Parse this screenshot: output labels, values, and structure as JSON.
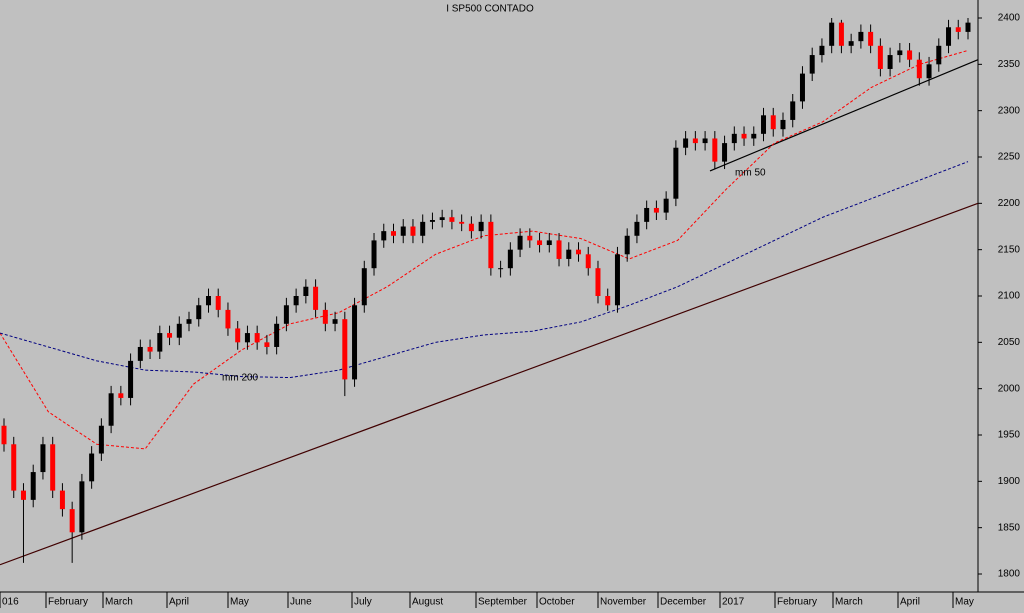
{
  "chart_data": {
    "type": "candlestick",
    "title": "I SP500 CONTADO",
    "x_labels": [
      "016",
      "February",
      "March",
      "April",
      "May",
      "June",
      "July",
      "August",
      "September",
      "October",
      "November",
      "December",
      "2017",
      "February",
      "March",
      "April",
      "May"
    ],
    "ylim": [
      1800,
      2400
    ],
    "yticks": [
      1800,
      1850,
      1900,
      1950,
      2000,
      2050,
      2100,
      2150,
      2200,
      2250,
      2300,
      2350,
      2400
    ],
    "up_color": "#000000",
    "down_color": "#ff0000",
    "open": [
      1960,
      1940,
      1890,
      1880,
      1910,
      1940,
      1890,
      1870,
      1845,
      1900,
      1930,
      1960,
      1995,
      1990,
      2030,
      2045,
      2040,
      2060,
      2055,
      2070,
      2075,
      2090,
      2100,
      2085,
      2065,
      2050,
      2060,
      2050,
      2045,
      2070,
      2090,
      2100,
      2110,
      2085,
      2070,
      2075,
      2010,
      2090,
      2130,
      2160,
      2170,
      2165,
      2175,
      2165,
      2180,
      2182,
      2185,
      2180,
      2178,
      2170,
      2180,
      2130,
      2130,
      2150,
      2165,
      2160,
      2155,
      2160,
      2140,
      2150,
      2145,
      2130,
      2100,
      2090,
      2145,
      2165,
      2180,
      2195,
      2190,
      2205,
      2260,
      2270,
      2265,
      2270,
      2245,
      2265,
      2275,
      2270,
      2275,
      2295,
      2280,
      2290,
      2310,
      2340,
      2360,
      2370,
      2395,
      2370,
      2375,
      2385,
      2370,
      2345,
      2360,
      2365,
      2355,
      2335,
      2350,
      2370,
      2390,
      2385
    ],
    "high": [
      1968,
      1948,
      1898,
      1918,
      1948,
      1948,
      1898,
      1878,
      1908,
      1938,
      1968,
      2003,
      2003,
      2038,
      2053,
      2053,
      2068,
      2068,
      2078,
      2083,
      2098,
      2108,
      2108,
      2093,
      2073,
      2068,
      2068,
      2058,
      2078,
      2098,
      2108,
      2118,
      2118,
      2093,
      2083,
      2083,
      2098,
      2138,
      2168,
      2178,
      2178,
      2183,
      2183,
      2188,
      2190,
      2193,
      2193,
      2188,
      2186,
      2188,
      2188,
      2138,
      2158,
      2173,
      2173,
      2168,
      2168,
      2168,
      2158,
      2158,
      2153,
      2138,
      2108,
      2153,
      2173,
      2188,
      2203,
      2203,
      2213,
      2268,
      2278,
      2278,
      2278,
      2278,
      2273,
      2283,
      2283,
      2283,
      2303,
      2303,
      2298,
      2318,
      2348,
      2368,
      2378,
      2400,
      2398,
      2383,
      2393,
      2393,
      2378,
      2368,
      2373,
      2373,
      2363,
      2358,
      2378,
      2398,
      2398,
      2400
    ],
    "low": [
      1932,
      1882,
      1812,
      1872,
      1902,
      1882,
      1862,
      1812,
      1837,
      1892,
      1922,
      1952,
      1982,
      1982,
      2022,
      2032,
      2032,
      2047,
      2047,
      2062,
      2067,
      2082,
      2077,
      2057,
      2042,
      2042,
      2042,
      2037,
      2037,
      2062,
      2082,
      2092,
      2077,
      2062,
      2062,
      1992,
      2002,
      2082,
      2122,
      2152,
      2157,
      2157,
      2157,
      2157,
      2172,
      2174,
      2172,
      2170,
      2162,
      2162,
      2122,
      2120,
      2122,
      2142,
      2152,
      2147,
      2147,
      2132,
      2132,
      2137,
      2122,
      2092,
      2084,
      2082,
      2137,
      2157,
      2172,
      2182,
      2182,
      2197,
      2252,
      2257,
      2257,
      2237,
      2237,
      2257,
      2262,
      2262,
      2267,
      2272,
      2272,
      2282,
      2302,
      2332,
      2352,
      2362,
      2362,
      2362,
      2367,
      2362,
      2337,
      2337,
      2352,
      2347,
      2327,
      2327,
      2342,
      2362,
      2377,
      2377
    ],
    "close": [
      1940,
      1890,
      1880,
      1910,
      1940,
      1890,
      1870,
      1845,
      1900,
      1930,
      1960,
      1995,
      1990,
      2030,
      2045,
      2040,
      2060,
      2055,
      2070,
      2075,
      2090,
      2100,
      2085,
      2065,
      2050,
      2060,
      2050,
      2045,
      2070,
      2090,
      2100,
      2110,
      2085,
      2070,
      2075,
      2010,
      2090,
      2130,
      2160,
      2170,
      2165,
      2175,
      2165,
      2180,
      2182,
      2185,
      2180,
      2178,
      2170,
      2180,
      2130,
      2130,
      2150,
      2165,
      2160,
      2155,
      2160,
      2140,
      2150,
      2145,
      2130,
      2100,
      2090,
      2145,
      2165,
      2180,
      2195,
      2190,
      2205,
      2260,
      2270,
      2265,
      2270,
      2245,
      2265,
      2275,
      2270,
      2275,
      2295,
      2280,
      2290,
      2310,
      2340,
      2360,
      2370,
      2395,
      2370,
      2375,
      2385,
      2370,
      2345,
      2360,
      2365,
      2355,
      2335,
      2350,
      2370,
      2390,
      2385,
      2395
    ],
    "averages": [
      {
        "name": "mm 50",
        "color": "#ff0000",
        "values": [
          2060,
          1975,
          1940,
          1935,
          2005,
          2042,
          2070,
          2082,
          2110,
          2145,
          2165,
          2170,
          2162,
          2140,
          2160,
          2215,
          2265,
          2288,
          2325,
          2350,
          2365
        ]
      },
      {
        "name": "mm 200",
        "color": "#000080",
        "values": [
          2060,
          2045,
          2030,
          2020,
          2018,
          2013,
          2012,
          2020,
          2035,
          2050,
          2058,
          2062,
          2072,
          2090,
          2110,
          2135,
          2160,
          2185,
          2205,
          2225,
          2245
        ]
      }
    ],
    "trendlines": [
      {
        "color": "#400000",
        "values": [
          1810,
          2200
        ]
      },
      {
        "color": "#000000",
        "values": [
          2235,
          2355
        ]
      }
    ]
  }
}
